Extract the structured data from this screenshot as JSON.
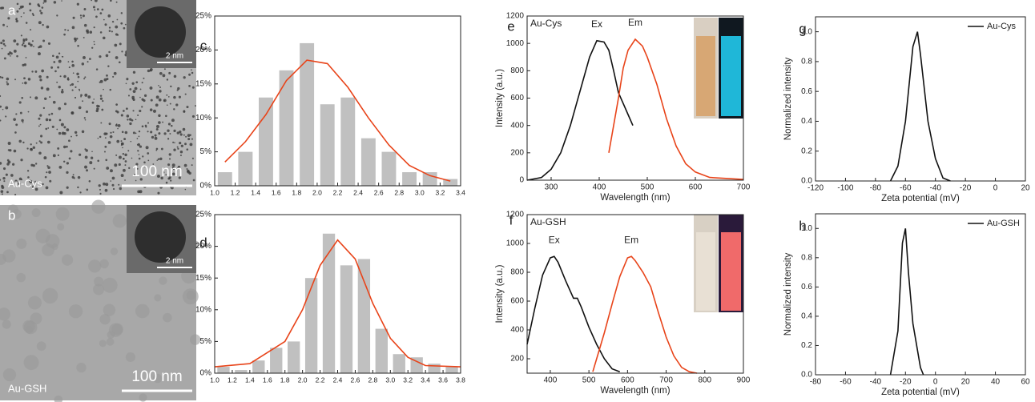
{
  "images": [
    {
      "label": "a",
      "caption": "Au-Cys",
      "scale": "100 nm",
      "inset_scale": "2 nm"
    },
    {
      "label": "b",
      "caption": "Au-GSH",
      "scale": "100 nm",
      "inset_scale": "2 nm"
    }
  ],
  "chart_data": [
    {
      "type": "bar",
      "label": "c",
      "color": "#c0c0c0",
      "x": [
        1.1,
        1.3,
        1.5,
        1.7,
        1.9,
        2.1,
        2.3,
        2.5,
        2.7,
        2.9,
        3.1,
        3.3
      ],
      "values": [
        2,
        5,
        13,
        17,
        21,
        12,
        13,
        7,
        5,
        2,
        2,
        1
      ],
      "fit": {
        "color": "#e8441a",
        "x": [
          1.1,
          1.3,
          1.5,
          1.7,
          1.9,
          2.1,
          2.3,
          2.5,
          2.7,
          2.9,
          3.1,
          3.3
        ],
        "values": [
          3.5,
          6.5,
          10.5,
          15.5,
          18.5,
          18,
          14.5,
          10,
          6,
          3,
          1.5,
          0.7
        ]
      },
      "xlim": [
        1.0,
        3.4
      ],
      "xticks": [
        {
          "value": 1.0,
          "label": "1.0"
        },
        1.2,
        1.4,
        1.6,
        1.8,
        {
          "value": 2.0,
          "label": "2.0"
        },
        2.2,
        2.4,
        2.6,
        2.8,
        {
          "value": 3.0,
          "label": "3.0"
        },
        3.2,
        3.4
      ],
      "ylim": [
        0,
        25
      ],
      "yticks": [
        {
          "value": 0,
          "label": "0%"
        },
        {
          "value": 5,
          "label": "5%"
        },
        {
          "value": 10,
          "label": "10%"
        },
        {
          "value": 15,
          "label": "15%"
        },
        {
          "value": 20,
          "label": "20%"
        },
        {
          "value": 25,
          "label": "25%"
        }
      ]
    },
    {
      "type": "bar",
      "label": "d",
      "color": "#c0c0c0",
      "x": [
        1.1,
        1.3,
        1.5,
        1.7,
        1.9,
        2.1,
        2.3,
        2.5,
        2.7,
        2.9,
        3.1,
        3.3,
        3.5,
        3.7
      ],
      "values": [
        1,
        0.5,
        2,
        4,
        5,
        15,
        22,
        17,
        18,
        7,
        3,
        2.5,
        1.5,
        1
      ],
      "fit": {
        "color": "#e8441a",
        "x": [
          1.0,
          1.4,
          1.8,
          2.0,
          2.2,
          2.4,
          2.6,
          2.8,
          3.0,
          3.2,
          3.4,
          3.8
        ],
        "values": [
          1,
          1.5,
          5,
          10,
          17,
          21,
          18,
          11,
          5.5,
          2.5,
          1.2,
          1
        ]
      },
      "xlim": [
        1.0,
        3.8
      ],
      "xticks": [
        {
          "value": 1.0,
          "label": "1.0"
        },
        1.2,
        1.4,
        1.6,
        1.8,
        {
          "value": 2.0,
          "label": "2.0"
        },
        2.2,
        2.4,
        2.6,
        2.8,
        {
          "value": 3.0,
          "label": "3.0"
        },
        3.2,
        3.4,
        3.6,
        3.8
      ],
      "ylim": [
        0,
        25
      ],
      "yticks": [
        {
          "value": 0,
          "label": "0%"
        },
        {
          "value": 5,
          "label": "5%"
        },
        {
          "value": 10,
          "label": "10%"
        },
        {
          "value": 15,
          "label": "15%"
        },
        {
          "value": 20,
          "label": "20%"
        },
        {
          "value": 25,
          "label": "25%"
        }
      ]
    },
    {
      "type": "line",
      "label": "e",
      "title": "Au-Cys",
      "x_label": "Wavelength (nm)",
      "y_label": "Intensity (a.u.)",
      "series": [
        {
          "name": "Ex",
          "color": "#111111",
          "x": [
            250,
            280,
            300,
            320,
            340,
            360,
            380,
            395,
            410,
            420,
            430,
            440,
            450,
            460,
            470
          ],
          "values": [
            0,
            20,
            80,
            200,
            400,
            650,
            900,
            1020,
            1010,
            950,
            800,
            640,
            560,
            480,
            400
          ]
        },
        {
          "name": "Em",
          "color": "#e8441a",
          "x": [
            420,
            430,
            440,
            450,
            460,
            475,
            490,
            500,
            520,
            540,
            560,
            580,
            600,
            630,
            700
          ],
          "values": [
            200,
            400,
            600,
            820,
            950,
            1030,
            980,
            900,
            700,
            450,
            250,
            120,
            60,
            20,
            5
          ]
        }
      ],
      "xlim": [
        250,
        700
      ],
      "xticks": [
        300,
        400,
        500,
        600,
        700
      ],
      "ylim": [
        0,
        1200
      ],
      "yticks": [
        0,
        200,
        400,
        600,
        800,
        1000,
        1200
      ]
    },
    {
      "type": "line",
      "label": "f",
      "title": "Au-GSH",
      "x_label": "Wavelength (nm)",
      "y_label": "Intensity (a.u.)",
      "series": [
        {
          "name": "Ex",
          "color": "#111111",
          "x": [
            340,
            360,
            380,
            400,
            410,
            420,
            440,
            460,
            470,
            480,
            500,
            520,
            540,
            560,
            580
          ],
          "values": [
            300,
            550,
            780,
            900,
            910,
            870,
            740,
            620,
            620,
            560,
            420,
            300,
            200,
            130,
            110
          ]
        },
        {
          "name": "Em",
          "color": "#e8441a",
          "x": [
            510,
            520,
            540,
            560,
            580,
            600,
            610,
            620,
            640,
            660,
            680,
            700,
            720,
            740,
            760,
            780
          ],
          "values": [
            110,
            200,
            380,
            580,
            770,
            900,
            910,
            880,
            800,
            700,
            520,
            350,
            220,
            140,
            110,
            100
          ]
        }
      ],
      "xlim": [
        340,
        900
      ],
      "xticks": [
        400,
        500,
        600,
        700,
        800,
        900
      ],
      "ylim": [
        100,
        1200
      ],
      "yticks": [
        200,
        400,
        600,
        800,
        1000,
        1200
      ]
    },
    {
      "type": "line",
      "label": "g",
      "legend": "upper right",
      "x_label": "Zeta potential (mV)",
      "y_label": "Normalized intensity",
      "series": [
        {
          "name": "Au-Cys",
          "color": "#111111",
          "x": [
            -70,
            -65,
            -60,
            -55,
            -52,
            -50,
            -45,
            -40,
            -35,
            -30
          ],
          "values": [
            0,
            0.1,
            0.4,
            0.9,
            1.0,
            0.85,
            0.4,
            0.15,
            0.02,
            0
          ]
        }
      ],
      "xlim": [
        -120,
        20
      ],
      "xticks": [
        -120,
        -100,
        -80,
        -60,
        -40,
        -20,
        0,
        20
      ],
      "ylim": [
        0,
        1.1
      ],
      "yticks": [
        {
          "value": 0,
          "label": "0.0"
        },
        0.2,
        0.4,
        0.6,
        0.8,
        {
          "value": 1,
          "label": "1.0"
        }
      ]
    },
    {
      "type": "line",
      "label": "h",
      "legend": "upper right",
      "x_label": "Zeta potential (mV)",
      "y_label": "Normalized intensity",
      "series": [
        {
          "name": "Au-GSH",
          "color": "#111111",
          "x": [
            -30,
            -25,
            -22,
            -20,
            -18,
            -15,
            -10,
            -8
          ],
          "values": [
            0,
            0.3,
            0.9,
            1.0,
            0.7,
            0.35,
            0.05,
            0
          ]
        }
      ],
      "xlim": [
        -80,
        60
      ],
      "xticks": [
        -80,
        -60,
        -40,
        -20,
        0,
        20,
        40,
        60
      ],
      "ylim": [
        0,
        1.1
      ],
      "yticks": [
        {
          "value": 0,
          "label": "0.0"
        },
        0.2,
        0.4,
        0.6,
        0.8,
        {
          "value": 1,
          "label": "1.0"
        }
      ]
    }
  ]
}
